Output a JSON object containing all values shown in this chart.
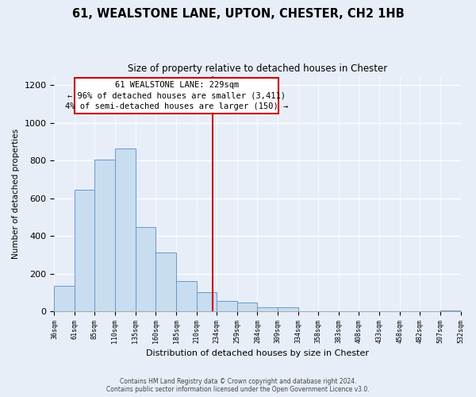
{
  "title": "61, WEALSTONE LANE, UPTON, CHESTER, CH2 1HB",
  "subtitle": "Size of property relative to detached houses in Chester",
  "xlabel": "Distribution of detached houses by size in Chester",
  "ylabel": "Number of detached properties",
  "bar_values": [
    135,
    645,
    805,
    865,
    445,
    310,
    160,
    100,
    55,
    45,
    20,
    20,
    0,
    0,
    0,
    0,
    0,
    0,
    0,
    5
  ],
  "bin_edges": [
    36,
    61,
    85,
    110,
    135,
    160,
    185,
    210,
    234,
    259,
    284,
    309,
    334,
    358,
    383,
    408,
    433,
    458,
    482,
    507,
    532
  ],
  "tick_labels": [
    "36sqm",
    "61sqm",
    "85sqm",
    "110sqm",
    "135sqm",
    "160sqm",
    "185sqm",
    "210sqm",
    "234sqm",
    "259sqm",
    "284sqm",
    "309sqm",
    "334sqm",
    "358sqm",
    "383sqm",
    "408sqm",
    "433sqm",
    "458sqm",
    "482sqm",
    "507sqm",
    "532sqm"
  ],
  "property_line_x": 229,
  "bar_color": "#c8ddf0",
  "bar_edge_color": "#6699cc",
  "line_color": "#cc0000",
  "annotation_line1": "61 WEALSTONE LANE: 229sqm",
  "annotation_line2": "← 96% of detached houses are smaller (3,411)",
  "annotation_line3": "4% of semi-detached houses are larger (150) →",
  "ylim": [
    0,
    1250
  ],
  "yticks": [
    0,
    200,
    400,
    600,
    800,
    1000,
    1200
  ],
  "footer_line1": "Contains HM Land Registry data © Crown copyright and database right 2024.",
  "footer_line2": "Contains public sector information licensed under the Open Government Licence v3.0.",
  "background_color": "#e8eef8",
  "grid_color": "#ffffff"
}
